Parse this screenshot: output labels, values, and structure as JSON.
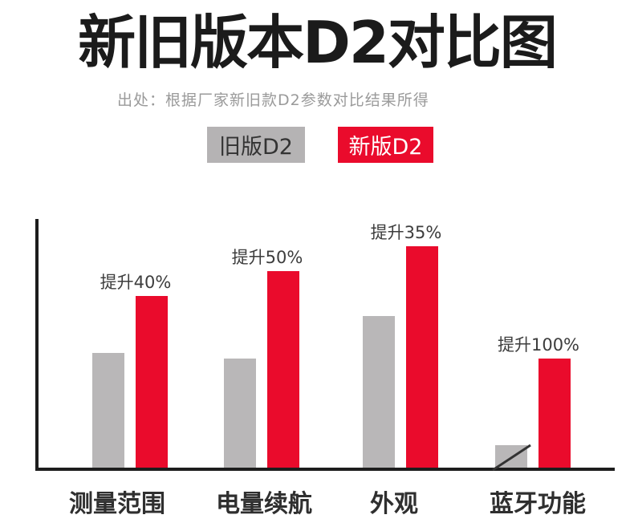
{
  "title": "新旧版本D2对比图",
  "subtitle": "出处：根据厂家新旧款D2参数对比结果所得",
  "legend": {
    "old_label": "旧版D2",
    "new_label": "新版D2"
  },
  "colors": {
    "old_bar": "#b9b7b8",
    "new_bar": "#ea0b2c",
    "axis": "#1d1d1d",
    "annotation_text": "#3d3d3d",
    "subtitle_text": "#9a9a9a"
  },
  "chart_data": {
    "type": "bar",
    "title": "新旧版本D2对比图",
    "categories": [
      "测量范围",
      "电量续航",
      "外观",
      "蓝牙功能"
    ],
    "series": [
      {
        "name": "旧版D2",
        "color": "#b9b7b8",
        "values": [
          46,
          44,
          61,
          9
        ]
      },
      {
        "name": "新版D2",
        "color": "#ea0b2c",
        "values": [
          69,
          79,
          89,
          44
        ]
      }
    ],
    "annotations": [
      "提升40%",
      "提升50%",
      "提升35%",
      "提升100%"
    ],
    "ylim": [
      0,
      100
    ],
    "grid": false,
    "legend_position": "top",
    "note": "old-version bluetooth bar is crossed out with a diagonal slash"
  }
}
